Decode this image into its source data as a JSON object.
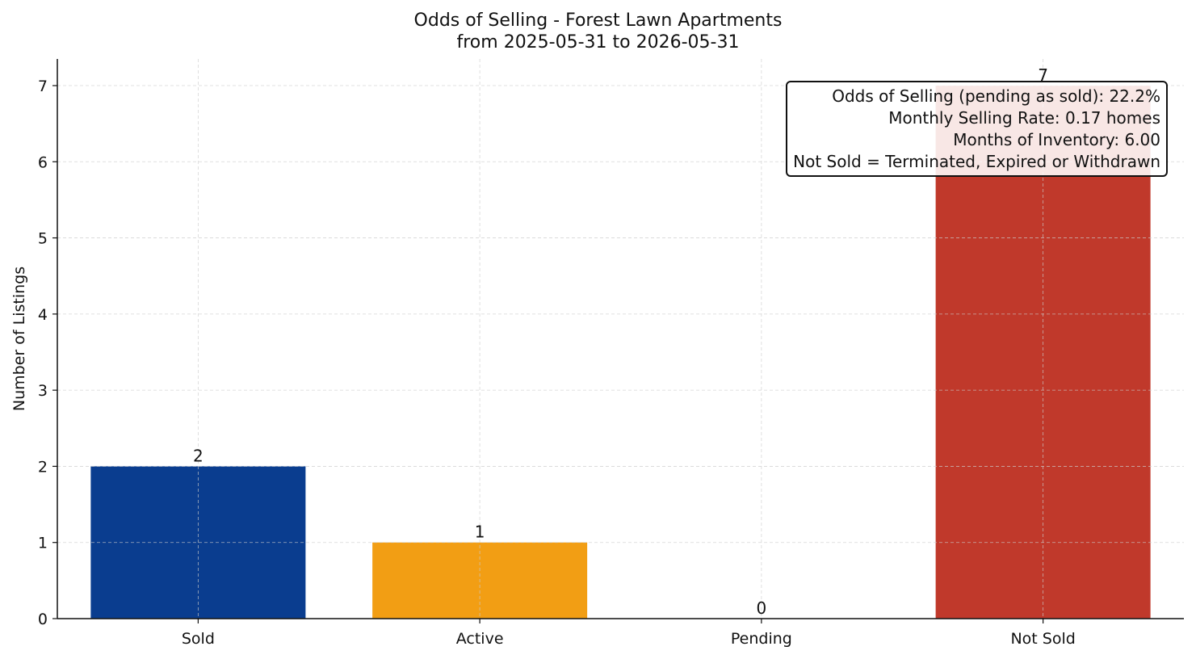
{
  "chart_data": {
    "type": "bar",
    "title_line1": "Odds of Selling - Forest Lawn Apartments",
    "title_line2": "from 2025-05-31 to 2026-05-31",
    "xlabel": "",
    "ylabel": "Number of Listings",
    "categories": [
      "Sold",
      "Active",
      "Pending",
      "Not Sold"
    ],
    "values": [
      2,
      1,
      0,
      7
    ],
    "colors": [
      "#0a3d8f",
      "#f29e14",
      "#2e8b57",
      "#c0392b"
    ],
    "ylim": [
      0,
      7.35
    ],
    "yticks": [
      0,
      1,
      2,
      3,
      4,
      5,
      6,
      7
    ],
    "grid": true,
    "annotation": [
      "Odds of Selling (pending as sold): 22.2%",
      "Monthly Selling Rate: 0.17 homes",
      "Months of Inventory: 6.00",
      "Not Sold = Terminated, Expired or Withdrawn"
    ]
  }
}
